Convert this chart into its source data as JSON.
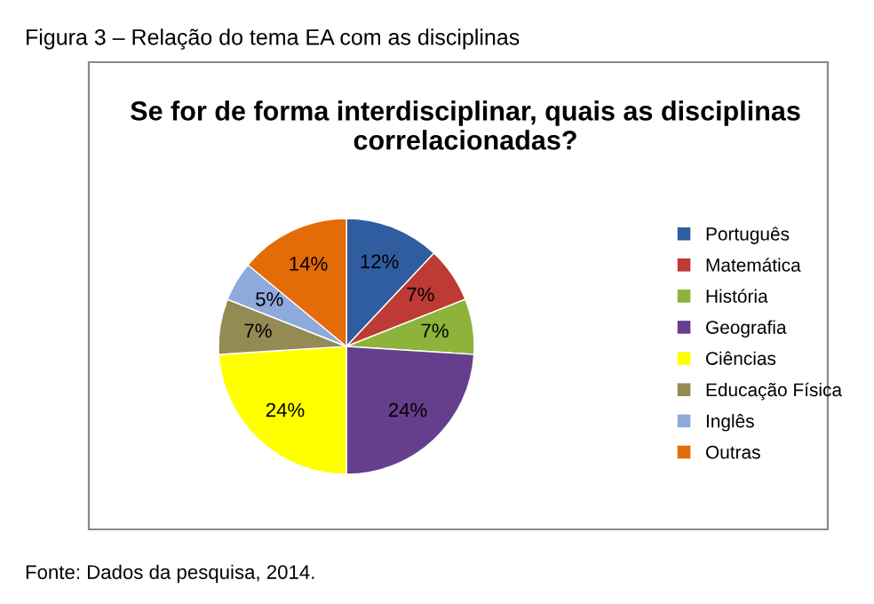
{
  "chart_data": {
    "type": "pie",
    "title": "Se for de forma interdisciplinar, quais as disciplinas correlacionadas?",
    "categories": [
      "Português",
      "Matemática",
      "História",
      "Geografia",
      "Ciências",
      "Educação Física",
      "Inglês",
      "Outras"
    ],
    "values": [
      12,
      7,
      7,
      24,
      24,
      7,
      5,
      14
    ],
    "value_labels": [
      "12%",
      "7%",
      "7%",
      "24%",
      "24%",
      "7%",
      "5%",
      "14%"
    ],
    "colors": [
      "#2f5d9f",
      "#be3a34",
      "#8db33a",
      "#653f8c",
      "#ffff00",
      "#948a54",
      "#8ea9db",
      "#e36c09"
    ],
    "legend": "right",
    "annotations": [
      "Figura 3 – Relação do tema EA com as disciplinas",
      "Fonte: Dados da pesquisa, 2014."
    ]
  }
}
